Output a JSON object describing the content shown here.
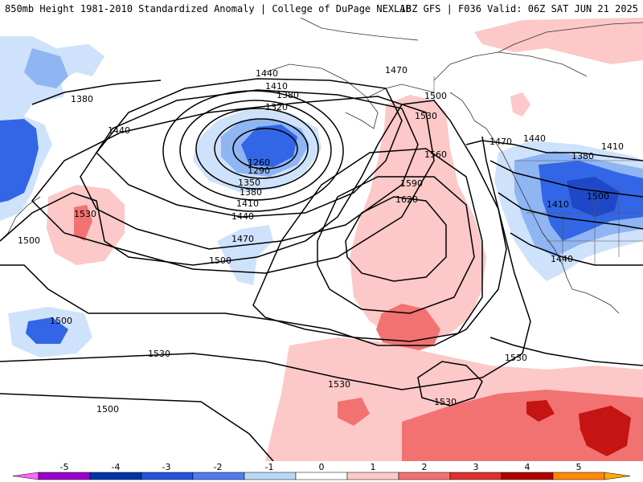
{
  "header": {
    "title": "850mb Height 1981-2010 Standardized Anomaly | College of DuPage NEXLAB",
    "run_info": "18Z GFS | F036 Valid: 06Z SAT JUN 21 2025"
  },
  "map": {
    "contour_labels": [
      "1440",
      "1410",
      "1380",
      "1320",
      "1260",
      "1290",
      "1350",
      "1380",
      "1410",
      "1440",
      "1470",
      "1500",
      "1380",
      "1440",
      "1530",
      "1500",
      "1500",
      "1530",
      "1500",
      "1530",
      "1560",
      "1590",
      "1620",
      "1530",
      "1530",
      "1500",
      "1470",
      "1470",
      "1440",
      "1380",
      "1410",
      "1410",
      "1440",
      "1500",
      "1530"
    ]
  },
  "legend": {
    "ticks": [
      "-5",
      "-4",
      "-3",
      "-2",
      "-1",
      "0",
      "1",
      "2",
      "3",
      "4",
      "5"
    ],
    "colors": [
      "#ff66ff",
      "#9900cc",
      "#0033aa",
      "#2255dd",
      "#4f7df0",
      "#b8d8f5",
      "#ffffff",
      "#fcc8c8",
      "#f57070",
      "#e03030",
      "#b00000",
      "#ff8800",
      "#ffaa00"
    ],
    "palette": {
      "strong_neg": "#3366e6",
      "mid_neg": "#8fb5f2",
      "weak_neg": "#cfe2fb",
      "weak_pos": "#fcc8c8",
      "mid_pos": "#f27272",
      "strong_pos": "#c41414"
    }
  }
}
